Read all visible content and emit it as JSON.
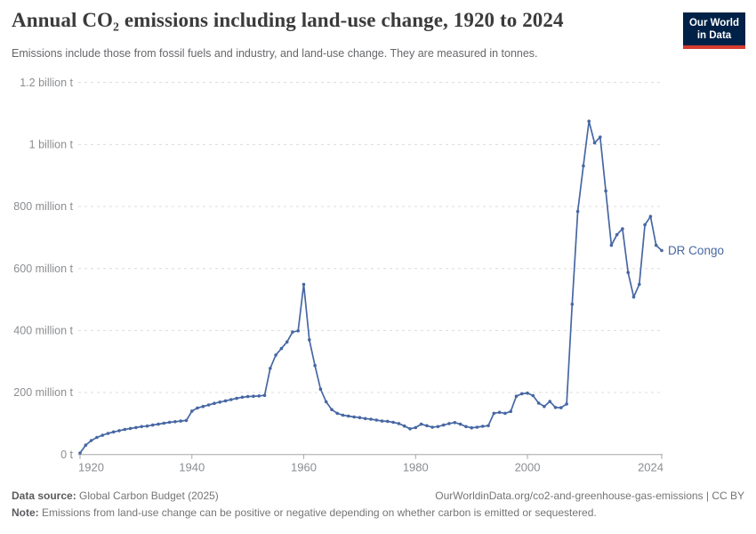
{
  "header": {
    "title": "Annual CO₂ emissions including land-use change, 1920 to 2024",
    "subtitle": "Emissions include those from fossil fuels and industry, and land-use change. They are measured in tonnes.",
    "logo": {
      "line1": "Our World",
      "line2": "in Data",
      "bg_color": "#002147",
      "accent_color": "#d63c2f"
    }
  },
  "footer": {
    "source_label": "Data source:",
    "source_value": " Global Carbon Budget (2025)",
    "link_text": "OurWorldinData.org/co2-and-greenhouse-gas-emissions | CC BY",
    "note_label": "Note:",
    "note_value": " Emissions from land-use change can be positive or negative depending on whether carbon is emitted or sequestered."
  },
  "chart_data": {
    "type": "line",
    "title": "Annual CO₂ emissions including land-use change, 1920 to 2024",
    "unit": "tonnes",
    "values_unit": "million tonnes",
    "xlabel": "",
    "ylabel": "",
    "grid": "dashed-horizontal",
    "legend_position": "end-of-line-label",
    "xlim": [
      1920,
      2024
    ],
    "ylim_million_t": [
      0,
      1200
    ],
    "x_ticks": [
      1920,
      1940,
      1960,
      1980,
      2000,
      2024
    ],
    "y_ticks": [
      {
        "value": 0,
        "label": "0 t"
      },
      {
        "value": 200,
        "label": "200 million t"
      },
      {
        "value": 400,
        "label": "400 million t"
      },
      {
        "value": 600,
        "label": "600 million t"
      },
      {
        "value": 800,
        "label": "800 million t"
      },
      {
        "value": 1000,
        "label": "1 billion t"
      },
      {
        "value": 1200,
        "label": "1.2 billion t"
      }
    ],
    "series": [
      {
        "name": "DR Congo",
        "color": "#4767a3",
        "x": [
          1920,
          1921,
          1922,
          1923,
          1924,
          1925,
          1926,
          1927,
          1928,
          1929,
          1930,
          1931,
          1932,
          1933,
          1934,
          1935,
          1936,
          1937,
          1938,
          1939,
          1940,
          1941,
          1942,
          1943,
          1944,
          1945,
          1946,
          1947,
          1948,
          1949,
          1950,
          1951,
          1952,
          1953,
          1954,
          1955,
          1956,
          1957,
          1958,
          1959,
          1960,
          1961,
          1962,
          1963,
          1964,
          1965,
          1966,
          1967,
          1968,
          1969,
          1970,
          1971,
          1972,
          1973,
          1974,
          1975,
          1976,
          1977,
          1978,
          1979,
          1980,
          1981,
          1982,
          1983,
          1984,
          1985,
          1986,
          1987,
          1988,
          1989,
          1990,
          1991,
          1992,
          1993,
          1994,
          1995,
          1996,
          1997,
          1998,
          1999,
          2000,
          2001,
          2002,
          2003,
          2004,
          2005,
          2006,
          2007,
          2008,
          2009,
          2010,
          2011,
          2012,
          2013,
          2014,
          2015,
          2016,
          2017,
          2018,
          2019,
          2020,
          2021,
          2022,
          2023,
          2024
        ],
        "values": [
          5,
          30,
          45,
          55,
          62,
          68,
          73,
          77,
          81,
          84,
          87,
          90,
          92,
          95,
          98,
          101,
          104,
          106,
          108,
          110,
          140,
          150,
          155,
          160,
          165,
          169,
          173,
          177,
          181,
          185,
          187,
          188,
          189,
          191,
          278,
          321,
          342,
          363,
          395,
          399,
          549,
          370,
          287,
          211,
          170,
          145,
          133,
          127,
          124,
          121,
          119,
          116,
          114,
          111,
          108,
          107,
          104,
          100,
          92,
          83,
          87,
          98,
          93,
          88,
          90,
          95,
          100,
          103,
          98,
          90,
          86,
          88,
          91,
          93,
          133,
          136,
          133,
          139,
          188,
          196,
          198,
          190,
          166,
          155,
          171,
          152,
          151,
          163,
          485,
          784,
          931,
          1075,
          1005,
          1024,
          850,
          675,
          709,
          728,
          587,
          508,
          549,
          741,
          768,
          675,
          658
        ]
      }
    ]
  }
}
